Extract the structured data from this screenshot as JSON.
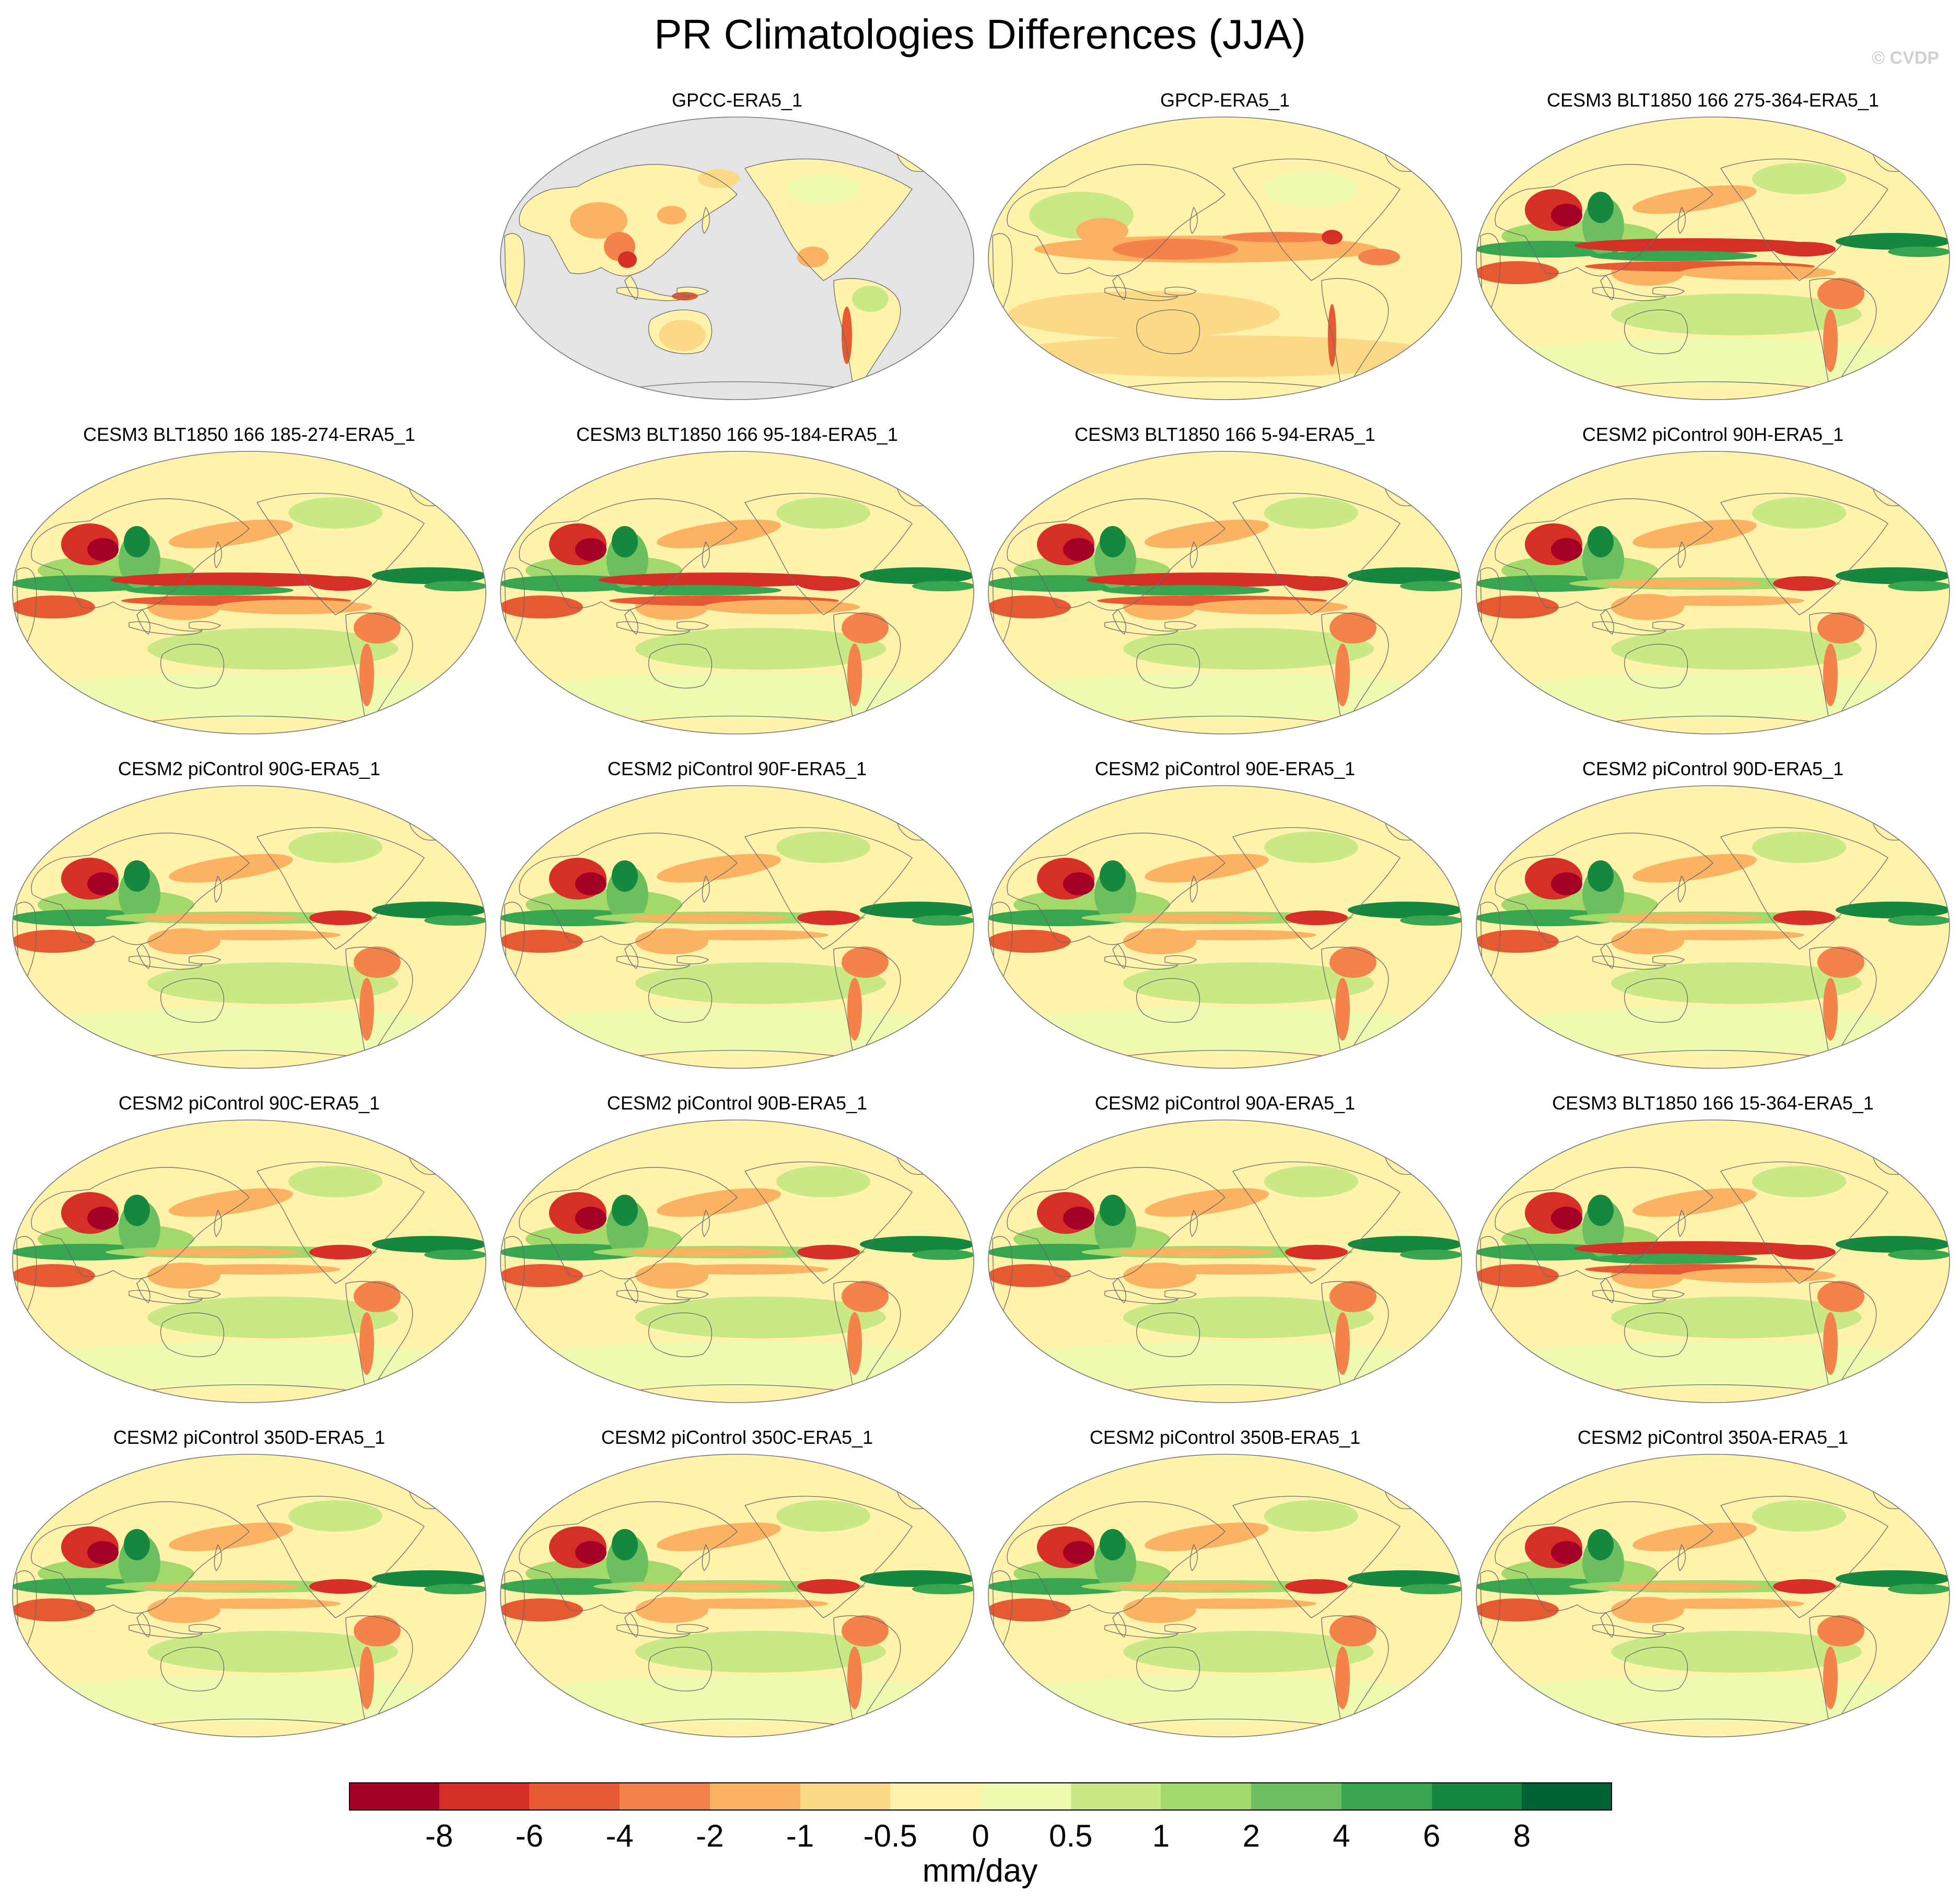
{
  "figure": {
    "title": "PR Climatologies Differences (JJA)",
    "watermark": "© CVDP"
  },
  "chart_data": {
    "type": "heatmap",
    "title": "PR Climatologies Differences (JJA)",
    "projection": "Robinson, Pacific-centered",
    "variable": "precipitation difference",
    "units": "mm/day",
    "colorbar": {
      "levels": [
        "-8",
        "-6",
        "-4",
        "-2",
        "-1",
        "-0.5",
        "0",
        "0.5",
        "1",
        "2",
        "4",
        "6",
        "8"
      ],
      "colors": [
        "#a50026",
        "#d62f27",
        "#e55a33",
        "#f4834b",
        "#fbb263",
        "#fcd986",
        "#fff3ac",
        "#f0f9b0",
        "#c9e886",
        "#a3d86a",
        "#6cbf5e",
        "#38a651",
        "#15873f",
        "#006334"
      ]
    },
    "panels": [
      {
        "label": "GPCC-ERA5_1",
        "style": "land"
      },
      {
        "label": "GPCP-ERA5_1",
        "style": "gpcp"
      },
      {
        "label": "CESM3 BLT1850 166 275-364-ERA5_1",
        "style": "cesm3"
      },
      {
        "label": "CESM3 BLT1850 166 185-274-ERA5_1",
        "style": "cesm3"
      },
      {
        "label": "CESM3 BLT1850 166 95-184-ERA5_1",
        "style": "cesm3"
      },
      {
        "label": "CESM3 BLT1850 166 5-94-ERA5_1",
        "style": "cesm3"
      },
      {
        "label": "CESM2 piControl 90H-ERA5_1",
        "style": "cesm2"
      },
      {
        "label": "CESM2 piControl 90G-ERA5_1",
        "style": "cesm2"
      },
      {
        "label": "CESM2 piControl 90F-ERA5_1",
        "style": "cesm2"
      },
      {
        "label": "CESM2 piControl 90E-ERA5_1",
        "style": "cesm2"
      },
      {
        "label": "CESM2 piControl 90D-ERA5_1",
        "style": "cesm2"
      },
      {
        "label": "CESM2 piControl 90C-ERA5_1",
        "style": "cesm2"
      },
      {
        "label": "CESM2 piControl 90B-ERA5_1",
        "style": "cesm2"
      },
      {
        "label": "CESM2 piControl 90A-ERA5_1",
        "style": "cesm2"
      },
      {
        "label": "CESM3 BLT1850 166 15-364-ERA5_1",
        "style": "cesm3"
      },
      {
        "label": "CESM2 piControl 350D-ERA5_1",
        "style": "cesm2"
      },
      {
        "label": "CESM2 piControl 350C-ERA5_1",
        "style": "cesm2"
      },
      {
        "label": "CESM2 piControl 350B-ERA5_1",
        "style": "cesm2"
      },
      {
        "label": "CESM2 piControl 350A-ERA5_1",
        "style": "cesm2"
      }
    ]
  }
}
